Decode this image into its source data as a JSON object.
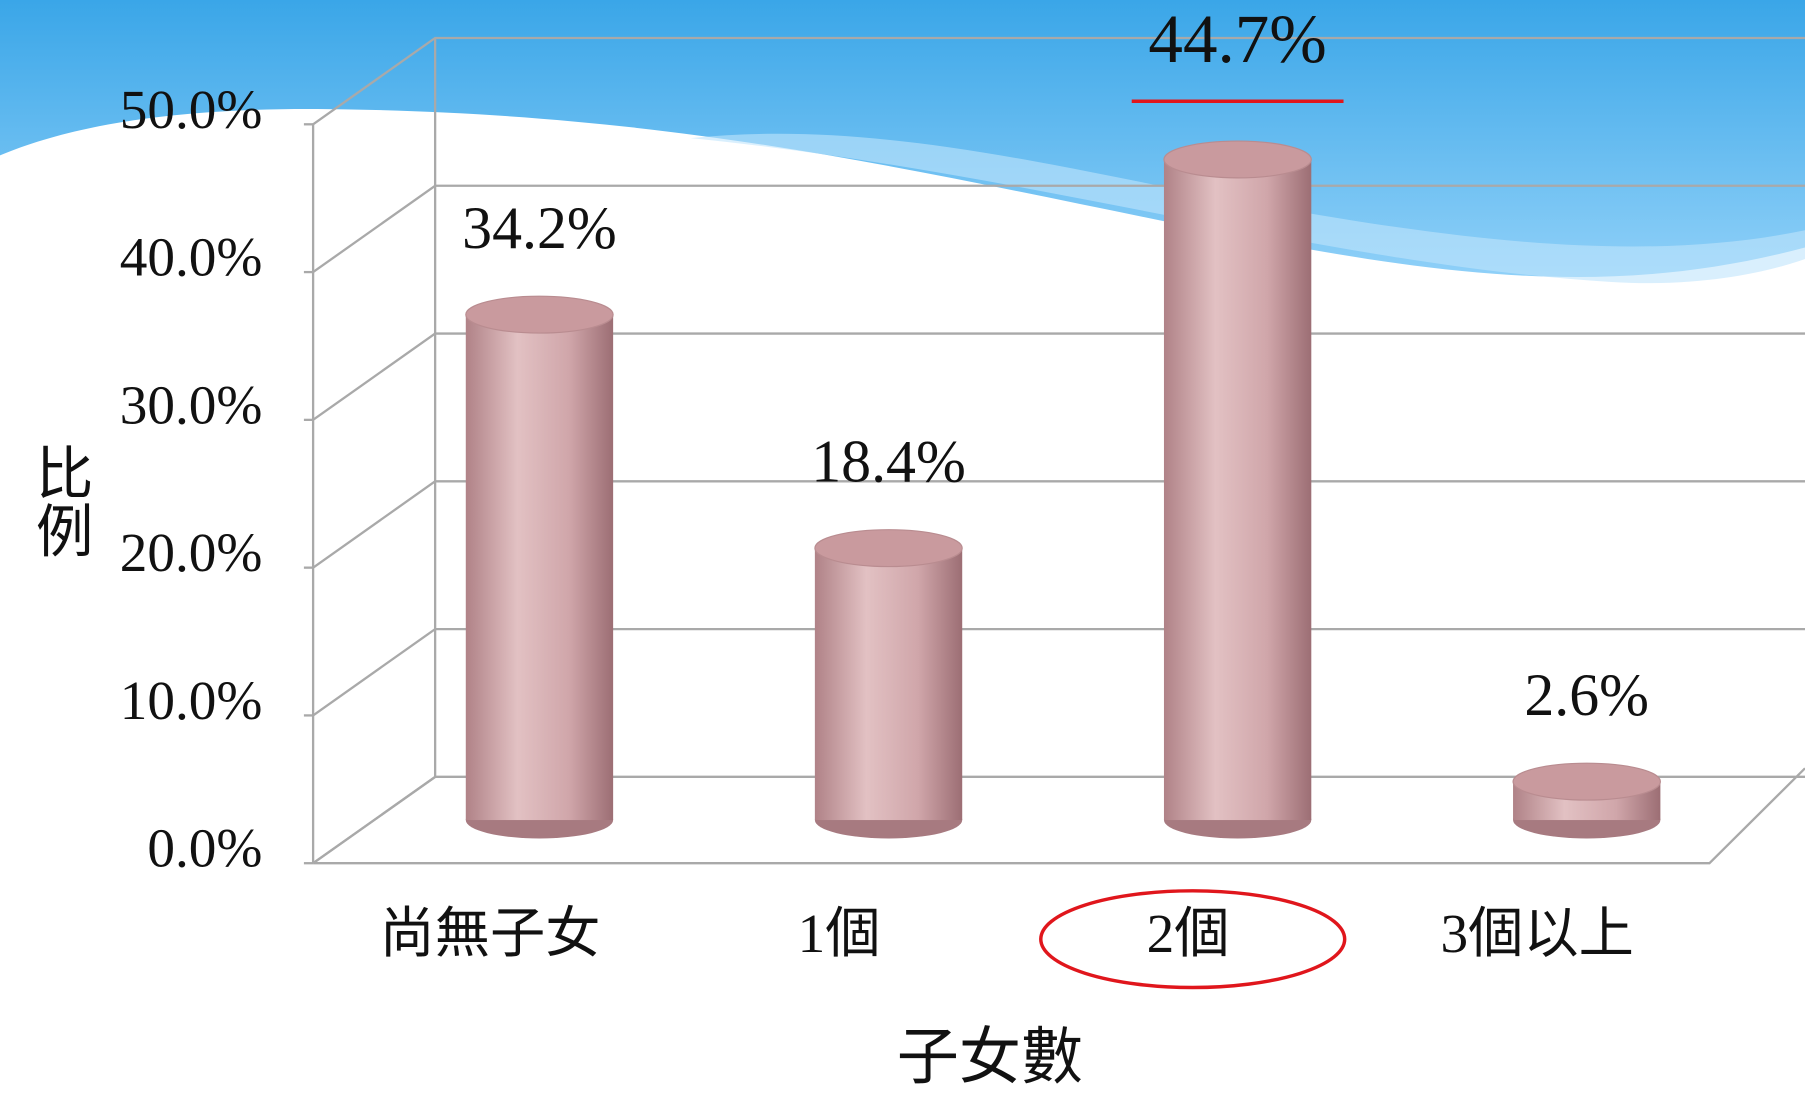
{
  "chart_data": {
    "type": "bar3d",
    "categories": [
      "尚無子女",
      "1個",
      "2個",
      "3個以上"
    ],
    "values": [
      34.2,
      18.4,
      44.7,
      2.6
    ],
    "value_labels": [
      "34.2%",
      "18.4%",
      "44.7%",
      "2.6%"
    ],
    "color": "#c99a9e",
    "highlight_color": "#e0161c",
    "x_label": "子女數",
    "y_label": "比例",
    "ylim": [
      0,
      50
    ],
    "yticks": [
      {
        "value": 0,
        "label": "0.0%"
      },
      {
        "value": 10,
        "label": "10.0%"
      },
      {
        "value": 20,
        "label": "20.0%"
      },
      {
        "value": 30,
        "label": "30.0%"
      },
      {
        "value": 40,
        "label": "40.0%"
      },
      {
        "value": 50,
        "label": "50.0%"
      }
    ],
    "grid": true
  }
}
